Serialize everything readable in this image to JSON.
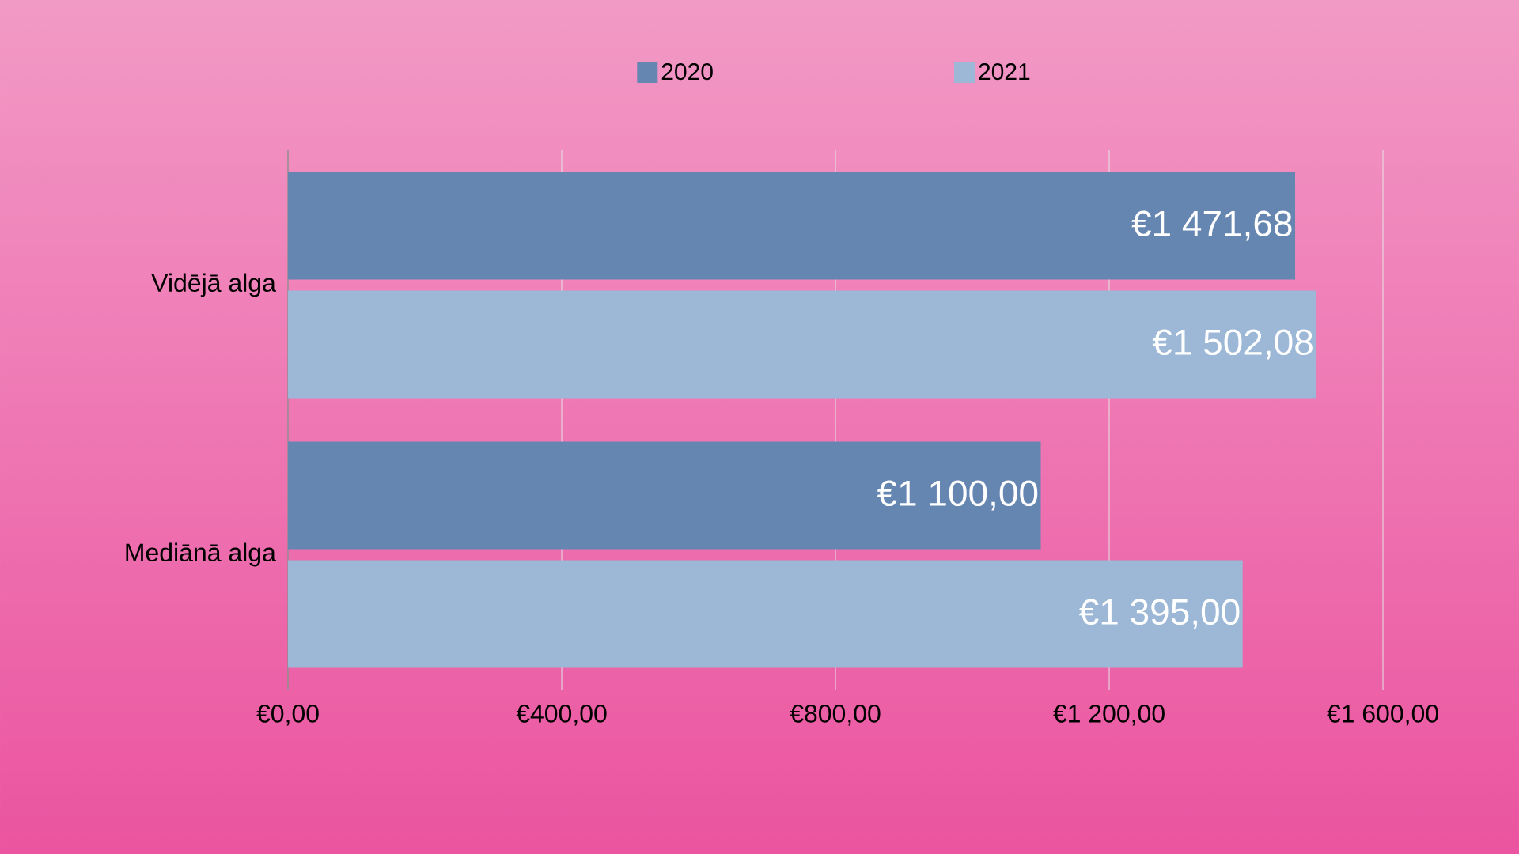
{
  "chart_data": {
    "type": "bar",
    "orientation": "horizontal",
    "categories": [
      "Vidējā alga",
      "Mediānā alga"
    ],
    "series": [
      {
        "name": "2020",
        "color": "#6686b2",
        "values": [
          1471.68,
          1100.0
        ],
        "value_labels": [
          "€1 471,68",
          "€1 100,00"
        ]
      },
      {
        "name": "2021",
        "color": "#9cb8d6",
        "values": [
          1502.08,
          1395.0
        ],
        "value_labels": [
          "€1 502,08",
          "€1 395,00"
        ]
      }
    ],
    "xlim": [
      0,
      1600
    ],
    "xticks": [
      {
        "value": 0,
        "label": "€0,00"
      },
      {
        "value": 400,
        "label": "€400,00"
      },
      {
        "value": 800,
        "label": "€800,00"
      },
      {
        "value": 1200,
        "label": "€1 200,00"
      },
      {
        "value": 1600,
        "label": "€1 600,00"
      }
    ],
    "grid": "x",
    "legend": "top"
  }
}
